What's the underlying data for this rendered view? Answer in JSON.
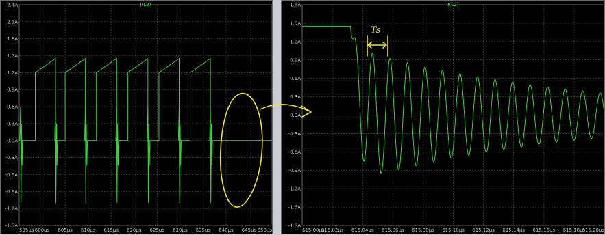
{
  "chart_data": [
    {
      "type": "line",
      "title": "I(L2)",
      "series": [
        {
          "name": "I(L2)",
          "color": "#39d139"
        }
      ],
      "x_ticks": [
        "595µs",
        "600µs",
        "605µs",
        "610µs",
        "615µs",
        "620µs",
        "625µs",
        "630µs",
        "635µs",
        "640µs",
        "645µs",
        "650µs"
      ],
      "y_ticks": [
        "2.4A",
        "2.1A",
        "1.8A",
        "1.5A",
        "1.2A",
        "0.9A",
        "0.6A",
        "0.3A",
        "0.0A",
        "-0.3A",
        "-0.6A",
        "-0.9A",
        "-1.2A",
        "-1.5A"
      ],
      "xlim": [
        595,
        650
      ],
      "ylim": [
        -1.5,
        2.4
      ],
      "pulses": [
        {
          "on": 598.5,
          "off": 602.9
        },
        {
          "on": 605.0,
          "off": 609.4
        },
        {
          "on": 611.8,
          "off": 616.2
        },
        {
          "on": 618.6,
          "off": 623.0
        },
        {
          "on": 625.4,
          "off": 629.8
        },
        {
          "on": 632.2,
          "off": 636.6
        }
      ],
      "pulse_low": 1.2,
      "pulse_high": 1.45,
      "spikes": [
        595.3,
        602.9,
        609.4,
        616.2,
        623.0,
        629.8,
        636.6
      ],
      "spike_peak": 0.6,
      "spike_trough": -1.1,
      "grid": true
    },
    {
      "type": "line",
      "title": "I(L2)",
      "series": [
        {
          "name": "I(L2)",
          "color": "#39d139"
        }
      ],
      "x_ticks": [
        "615.00µs",
        "615.02µs",
        "615.04µs",
        "615.06µs",
        "615.08µs",
        "615.10µs",
        "615.12µs",
        "615.14µs",
        "615.16µs",
        "615.18µs",
        "615.20µs"
      ],
      "y_ticks": [
        "1.8A",
        "1.5A",
        "1.2A",
        "0.9A",
        "0.6A",
        "0.3A",
        "0.0A",
        "-0.3A",
        "-0.6A",
        "-0.9A",
        "-1.2A",
        "-1.5A",
        "-1.8A"
      ],
      "xlim": [
        615.0,
        615.2
      ],
      "ylim": [
        -1.8,
        1.8
      ],
      "flat_level": 1.45,
      "drop_start": 615.032,
      "ringing_period": 0.0116,
      "first_trough": -1.1,
      "first_peak": 1.05,
      "last_amplitude": 0.36,
      "grid": true
    }
  ],
  "annotations": {
    "handwritten_label": "Ts"
  }
}
